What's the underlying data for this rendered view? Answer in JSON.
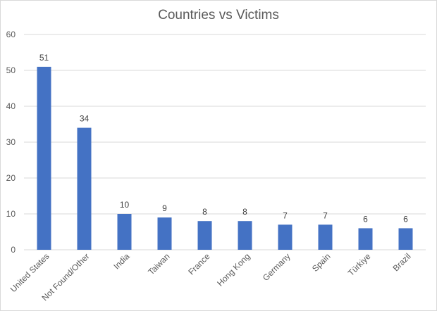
{
  "chart_data": {
    "type": "bar",
    "title": "Countries vs Victims",
    "categories": [
      "United States",
      "Not Found/Other",
      "India",
      "Taiwan",
      "France",
      "Hong Kong",
      "Germany",
      "Spain",
      "Türkiye",
      "Brazil"
    ],
    "values": [
      51,
      34,
      10,
      9,
      8,
      8,
      7,
      7,
      6,
      6
    ],
    "yticks": [
      0,
      10,
      20,
      30,
      40,
      50,
      60
    ],
    "ylim": [
      0,
      60
    ],
    "grid": true,
    "data_labels": true,
    "bar_color": "#4472c4",
    "grid_color": "#d9d9d9",
    "text_color": "#595959"
  }
}
